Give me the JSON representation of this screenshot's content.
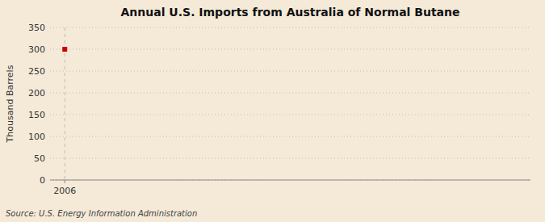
{
  "chart_data": {
    "type": "scatter",
    "title": "Annual U.S. Imports from Australia of Normal Butane",
    "y_label": "Thousand Barrels",
    "source": "Source: U.S. Energy Information Administration",
    "x": [
      2006
    ],
    "values": [
      300
    ],
    "color": "#cc0000",
    "marker": "square",
    "xlim": [
      2005.4,
      2025
    ],
    "ylim": [
      0,
      350
    ],
    "xticks": [
      2006
    ],
    "yticks": [
      0,
      50,
      100,
      150,
      200,
      250,
      300,
      350
    ],
    "grid": true
  }
}
